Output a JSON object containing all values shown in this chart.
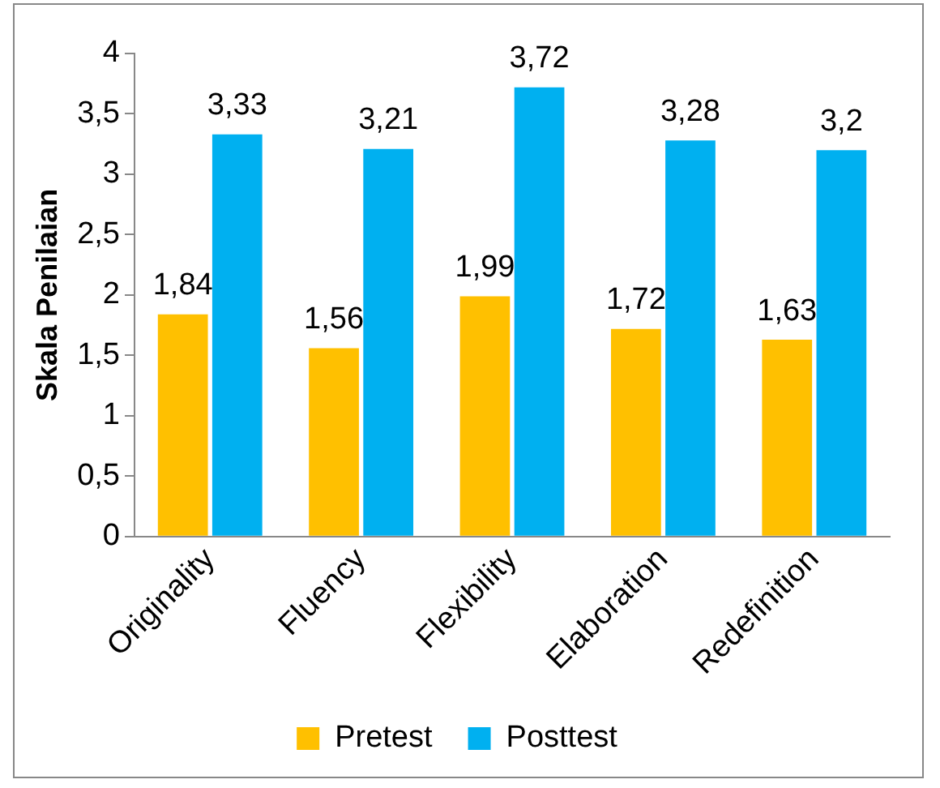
{
  "chart_data": {
    "type": "bar",
    "ylabel": "Skala Penilaian",
    "categories": [
      "Originality",
      "Fluency",
      "Flexibility",
      "Elaboration",
      "Redefinition"
    ],
    "series": [
      {
        "name": "Pretest",
        "color": "#ffc000",
        "values": [
          1.84,
          1.56,
          1.99,
          1.72,
          1.63
        ],
        "value_labels": [
          "1,84",
          "1,56",
          "1,99",
          "1,72",
          "1,63"
        ]
      },
      {
        "name": "Posttest",
        "color": "#00b0f0",
        "values": [
          3.33,
          3.21,
          3.72,
          3.28,
          3.2
        ],
        "value_labels": [
          "3,33",
          "3,21",
          "3,72",
          "3,28",
          "3,2"
        ]
      }
    ],
    "ylim": [
      0,
      4
    ],
    "yticks": [
      0,
      {
        "value": 0.5,
        "label": "0,5"
      },
      1,
      {
        "value": 1.5,
        "label": "1,5"
      },
      2,
      {
        "value": 2.5,
        "label": "2,5"
      },
      3,
      {
        "value": 3.5,
        "label": "3,5"
      },
      4
    ],
    "grid": false,
    "legend": "bottom"
  }
}
